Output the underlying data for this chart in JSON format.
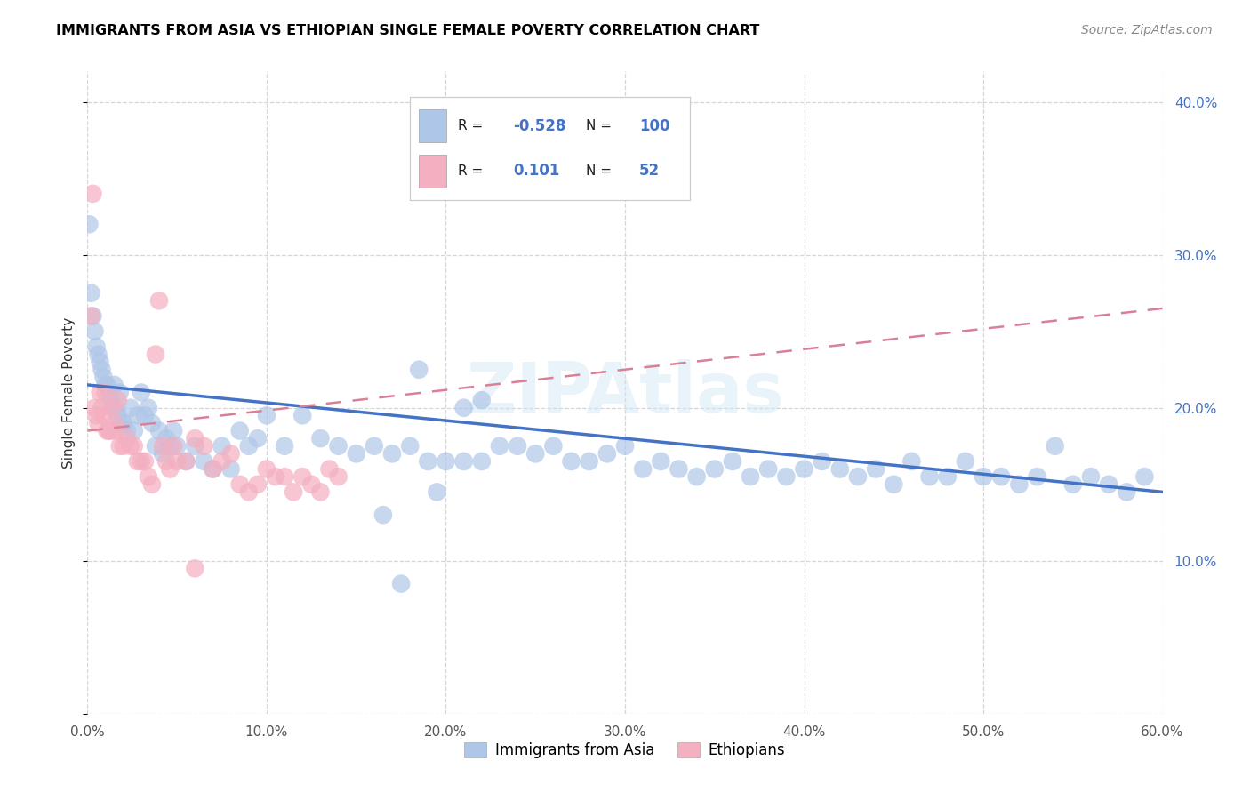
{
  "title": "IMMIGRANTS FROM ASIA VS ETHIOPIAN SINGLE FEMALE POVERTY CORRELATION CHART",
  "source": "Source: ZipAtlas.com",
  "ylabel": "Single Female Poverty",
  "xlim": [
    0.0,
    0.6
  ],
  "ylim": [
    0.0,
    0.42
  ],
  "legend_labels": [
    "Immigrants from Asia",
    "Ethiopians"
  ],
  "r_asia": -0.528,
  "n_asia": 100,
  "r_eth": 0.101,
  "n_eth": 52,
  "color_asia": "#aec6e8",
  "color_eth": "#f4afc0",
  "color_line_asia": "#4472c4",
  "color_line_eth": "#d98098",
  "color_text_blue": "#4472c4",
  "watermark_text": "ZIPAtlas",
  "asia_x": [
    0.001,
    0.002,
    0.003,
    0.004,
    0.005,
    0.006,
    0.007,
    0.008,
    0.009,
    0.01,
    0.011,
    0.012,
    0.013,
    0.014,
    0.015,
    0.016,
    0.017,
    0.018,
    0.019,
    0.02,
    0.022,
    0.024,
    0.026,
    0.028,
    0.03,
    0.032,
    0.034,
    0.036,
    0.038,
    0.04,
    0.042,
    0.044,
    0.046,
    0.048,
    0.05,
    0.055,
    0.06,
    0.065,
    0.07,
    0.075,
    0.08,
    0.085,
    0.09,
    0.095,
    0.1,
    0.11,
    0.12,
    0.13,
    0.14,
    0.15,
    0.16,
    0.17,
    0.18,
    0.19,
    0.2,
    0.21,
    0.22,
    0.23,
    0.24,
    0.25,
    0.26,
    0.27,
    0.28,
    0.29,
    0.3,
    0.31,
    0.32,
    0.33,
    0.34,
    0.35,
    0.36,
    0.37,
    0.38,
    0.39,
    0.4,
    0.41,
    0.42,
    0.43,
    0.44,
    0.45,
    0.46,
    0.47,
    0.48,
    0.49,
    0.5,
    0.51,
    0.52,
    0.53,
    0.54,
    0.55,
    0.56,
    0.57,
    0.58,
    0.59,
    0.21,
    0.22,
    0.195,
    0.165,
    0.175,
    0.185
  ],
  "asia_y": [
    0.32,
    0.275,
    0.26,
    0.25,
    0.24,
    0.235,
    0.23,
    0.225,
    0.22,
    0.215,
    0.215,
    0.21,
    0.205,
    0.2,
    0.215,
    0.2,
    0.195,
    0.21,
    0.19,
    0.19,
    0.185,
    0.2,
    0.185,
    0.195,
    0.21,
    0.195,
    0.2,
    0.19,
    0.175,
    0.185,
    0.17,
    0.18,
    0.175,
    0.185,
    0.175,
    0.165,
    0.175,
    0.165,
    0.16,
    0.175,
    0.16,
    0.185,
    0.175,
    0.18,
    0.195,
    0.175,
    0.195,
    0.18,
    0.175,
    0.17,
    0.175,
    0.17,
    0.175,
    0.165,
    0.165,
    0.165,
    0.165,
    0.175,
    0.175,
    0.17,
    0.175,
    0.165,
    0.165,
    0.17,
    0.175,
    0.16,
    0.165,
    0.16,
    0.155,
    0.16,
    0.165,
    0.155,
    0.16,
    0.155,
    0.16,
    0.165,
    0.16,
    0.155,
    0.16,
    0.15,
    0.165,
    0.155,
    0.155,
    0.165,
    0.155,
    0.155,
    0.15,
    0.155,
    0.175,
    0.15,
    0.155,
    0.15,
    0.145,
    0.155,
    0.2,
    0.205,
    0.145,
    0.13,
    0.085,
    0.225
  ],
  "eth_x": [
    0.002,
    0.003,
    0.004,
    0.005,
    0.006,
    0.007,
    0.008,
    0.009,
    0.01,
    0.011,
    0.012,
    0.013,
    0.014,
    0.015,
    0.016,
    0.017,
    0.018,
    0.02,
    0.022,
    0.024,
    0.026,
    0.028,
    0.03,
    0.032,
    0.034,
    0.036,
    0.038,
    0.04,
    0.042,
    0.044,
    0.046,
    0.048,
    0.05,
    0.055,
    0.06,
    0.065,
    0.07,
    0.075,
    0.08,
    0.085,
    0.09,
    0.095,
    0.1,
    0.105,
    0.11,
    0.115,
    0.12,
    0.125,
    0.13,
    0.135,
    0.14,
    0.06
  ],
  "eth_y": [
    0.26,
    0.34,
    0.2,
    0.195,
    0.19,
    0.21,
    0.2,
    0.195,
    0.21,
    0.185,
    0.185,
    0.185,
    0.2,
    0.19,
    0.185,
    0.205,
    0.175,
    0.175,
    0.18,
    0.175,
    0.175,
    0.165,
    0.165,
    0.165,
    0.155,
    0.15,
    0.235,
    0.27,
    0.175,
    0.165,
    0.16,
    0.175,
    0.165,
    0.165,
    0.18,
    0.175,
    0.16,
    0.165,
    0.17,
    0.15,
    0.145,
    0.15,
    0.16,
    0.155,
    0.155,
    0.145,
    0.155,
    0.15,
    0.145,
    0.16,
    0.155,
    0.095
  ],
  "trendline_asia_x0": 0.0,
  "trendline_asia_x1": 0.6,
  "trendline_asia_y0": 0.215,
  "trendline_asia_y1": 0.145,
  "trendline_eth_x0": 0.0,
  "trendline_eth_x1": 0.6,
  "trendline_eth_y0": 0.185,
  "trendline_eth_y1": 0.265
}
